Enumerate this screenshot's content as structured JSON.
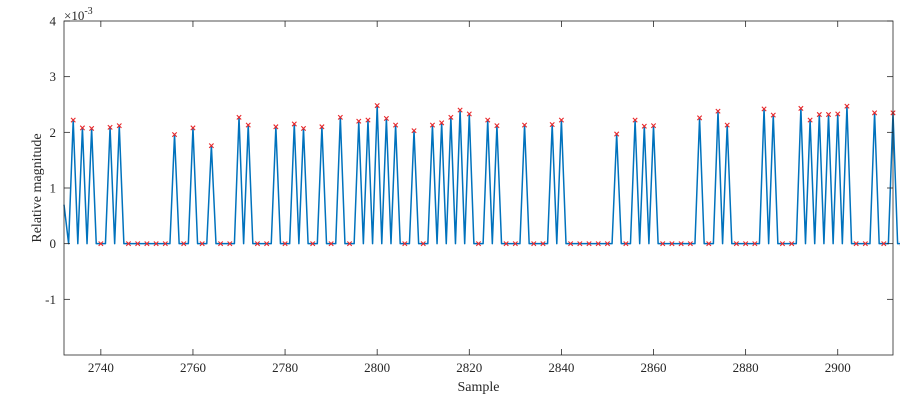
{
  "chart_data": {
    "type": "line",
    "title": "",
    "xlabel": "Sample",
    "ylabel": "Relative magnitude",
    "y_multiplier_label": "×10",
    "y_multiplier_exponent": "-3",
    "xlim": [
      2732,
      2912
    ],
    "ylim": [
      -2,
      4
    ],
    "xticks": [
      2740,
      2760,
      2780,
      2800,
      2820,
      2840,
      2860,
      2880,
      2900
    ],
    "yticks": [
      -1,
      0,
      1,
      2,
      3,
      4
    ],
    "grid": false,
    "line_color": "#0072BD",
    "marker_color": "#E8282B",
    "sample_start": 2732,
    "values": [
      0.7,
      0.0,
      2.22,
      0.0,
      2.08,
      0.0,
      2.07,
      0.0,
      0.0,
      0.0,
      2.09,
      0.0,
      2.12,
      0.0,
      0.0,
      0.0,
      0.0,
      0.0,
      0.0,
      0.0,
      0.0,
      0.0,
      0.0,
      0.0,
      1.96,
      0.0,
      0.0,
      0.0,
      2.08,
      0.0,
      0.0,
      0.0,
      1.76,
      0.0,
      0.0,
      0.0,
      0.0,
      0.0,
      2.27,
      0.0,
      2.13,
      0.0,
      0.0,
      0.0,
      0.0,
      0.0,
      2.1,
      0.0,
      0.0,
      0.0,
      2.15,
      0.0,
      2.07,
      0.0,
      0.0,
      0.0,
      2.1,
      0.0,
      0.0,
      0.0,
      2.27,
      0.0,
      0.0,
      0.0,
      2.2,
      0.0,
      2.22,
      0.0,
      2.48,
      0.0,
      2.25,
      0.0,
      2.13,
      0.0,
      0.0,
      0.0,
      2.03,
      0.0,
      0.0,
      0.0,
      2.13,
      0.0,
      2.17,
      0.0,
      2.27,
      0.0,
      2.4,
      0.0,
      2.33,
      0.0,
      0.0,
      0.0,
      2.22,
      0.0,
      2.12,
      0.0,
      0.0,
      0.0,
      0.0,
      0.0,
      2.13,
      0.0,
      0.0,
      0.0,
      0.0,
      0.0,
      2.14,
      0.0,
      2.22,
      0.0,
      0.0,
      0.0,
      0.0,
      0.0,
      0.0,
      0.0,
      0.0,
      0.0,
      0.0,
      0.0,
      1.97,
      0.0,
      0.0,
      0.0,
      2.22,
      0.0,
      2.11,
      0.0,
      2.12,
      0.0,
      0.0,
      0.0,
      0.0,
      0.0,
      0.0,
      0.0,
      0.0,
      0.0,
      2.26,
      0.0,
      0.0,
      0.0,
      2.38,
      0.0,
      2.13,
      0.0,
      0.0,
      0.0,
      0.0,
      0.0,
      0.0,
      0.0,
      2.42,
      0.0,
      2.31,
      0.0,
      0.0,
      0.0,
      0.0,
      0.0,
      2.43,
      0.0,
      2.22,
      0.0,
      2.32,
      0.0,
      2.32,
      0.0,
      2.33,
      0.0,
      2.47,
      0.0,
      0.0,
      0.0,
      0.0,
      0.0,
      2.35,
      0.0,
      0.0,
      0.0,
      2.35,
      0.0,
      0.0,
      0.72
    ]
  }
}
